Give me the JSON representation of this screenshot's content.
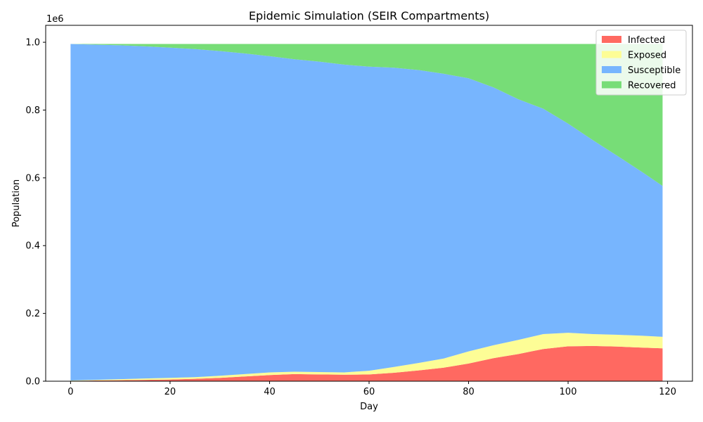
{
  "chart_data": {
    "type": "area",
    "stacked": true,
    "title": "Epidemic Simulation (SEIR Compartments)",
    "xlabel": "Day",
    "ylabel": "Population",
    "y_offset_label": "1e6",
    "xlim": [
      -5,
      125
    ],
    "ylim": [
      0,
      1.05
    ],
    "x_ticks": [
      0,
      20,
      40,
      60,
      80,
      100,
      120
    ],
    "x_tick_labels": [
      "0",
      "20",
      "40",
      "60",
      "80",
      "100",
      "120"
    ],
    "y_ticks": [
      0,
      0.2,
      0.4,
      0.6,
      0.8,
      1.0
    ],
    "y_tick_labels": [
      "0.0",
      "0.2",
      "0.4",
      "0.6",
      "0.8",
      "1.0"
    ],
    "grid": false,
    "legend_position": "top-right",
    "x": [
      0,
      5,
      10,
      15,
      20,
      25,
      30,
      35,
      40,
      45,
      50,
      55,
      60,
      65,
      70,
      75,
      80,
      85,
      90,
      95,
      100,
      105,
      110,
      115,
      119
    ],
    "series": [
      {
        "name": "Infected",
        "color": "#ff6961",
        "values": [
          0.001,
          0.002,
          0.003,
          0.004,
          0.005,
          0.007,
          0.01,
          0.014,
          0.018,
          0.021,
          0.02,
          0.019,
          0.02,
          0.025,
          0.032,
          0.04,
          0.052,
          0.068,
          0.08,
          0.095,
          0.103,
          0.104,
          0.102,
          0.099,
          0.097
        ]
      },
      {
        "name": "Exposed",
        "color": "#fdfd96",
        "values": [
          0.001,
          0.002,
          0.003,
          0.004,
          0.005,
          0.005,
          0.006,
          0.007,
          0.008,
          0.007,
          0.007,
          0.007,
          0.011,
          0.017,
          0.022,
          0.027,
          0.036,
          0.038,
          0.042,
          0.044,
          0.04,
          0.035,
          0.035,
          0.035,
          0.034
        ]
      },
      {
        "name": "Susceptible",
        "color": "#77b5fe",
        "values": [
          0.993,
          0.989,
          0.985,
          0.98,
          0.974,
          0.968,
          0.958,
          0.946,
          0.933,
          0.922,
          0.916,
          0.908,
          0.897,
          0.883,
          0.864,
          0.84,
          0.806,
          0.761,
          0.71,
          0.665,
          0.617,
          0.572,
          0.527,
          0.482,
          0.445
        ]
      },
      {
        "name": "Recovered",
        "color": "#77dd77",
        "values": [
          0.0,
          0.002,
          0.004,
          0.007,
          0.011,
          0.015,
          0.021,
          0.028,
          0.036,
          0.045,
          0.052,
          0.061,
          0.067,
          0.07,
          0.077,
          0.088,
          0.101,
          0.128,
          0.163,
          0.191,
          0.235,
          0.284,
          0.331,
          0.379,
          0.419
        ]
      }
    ]
  }
}
